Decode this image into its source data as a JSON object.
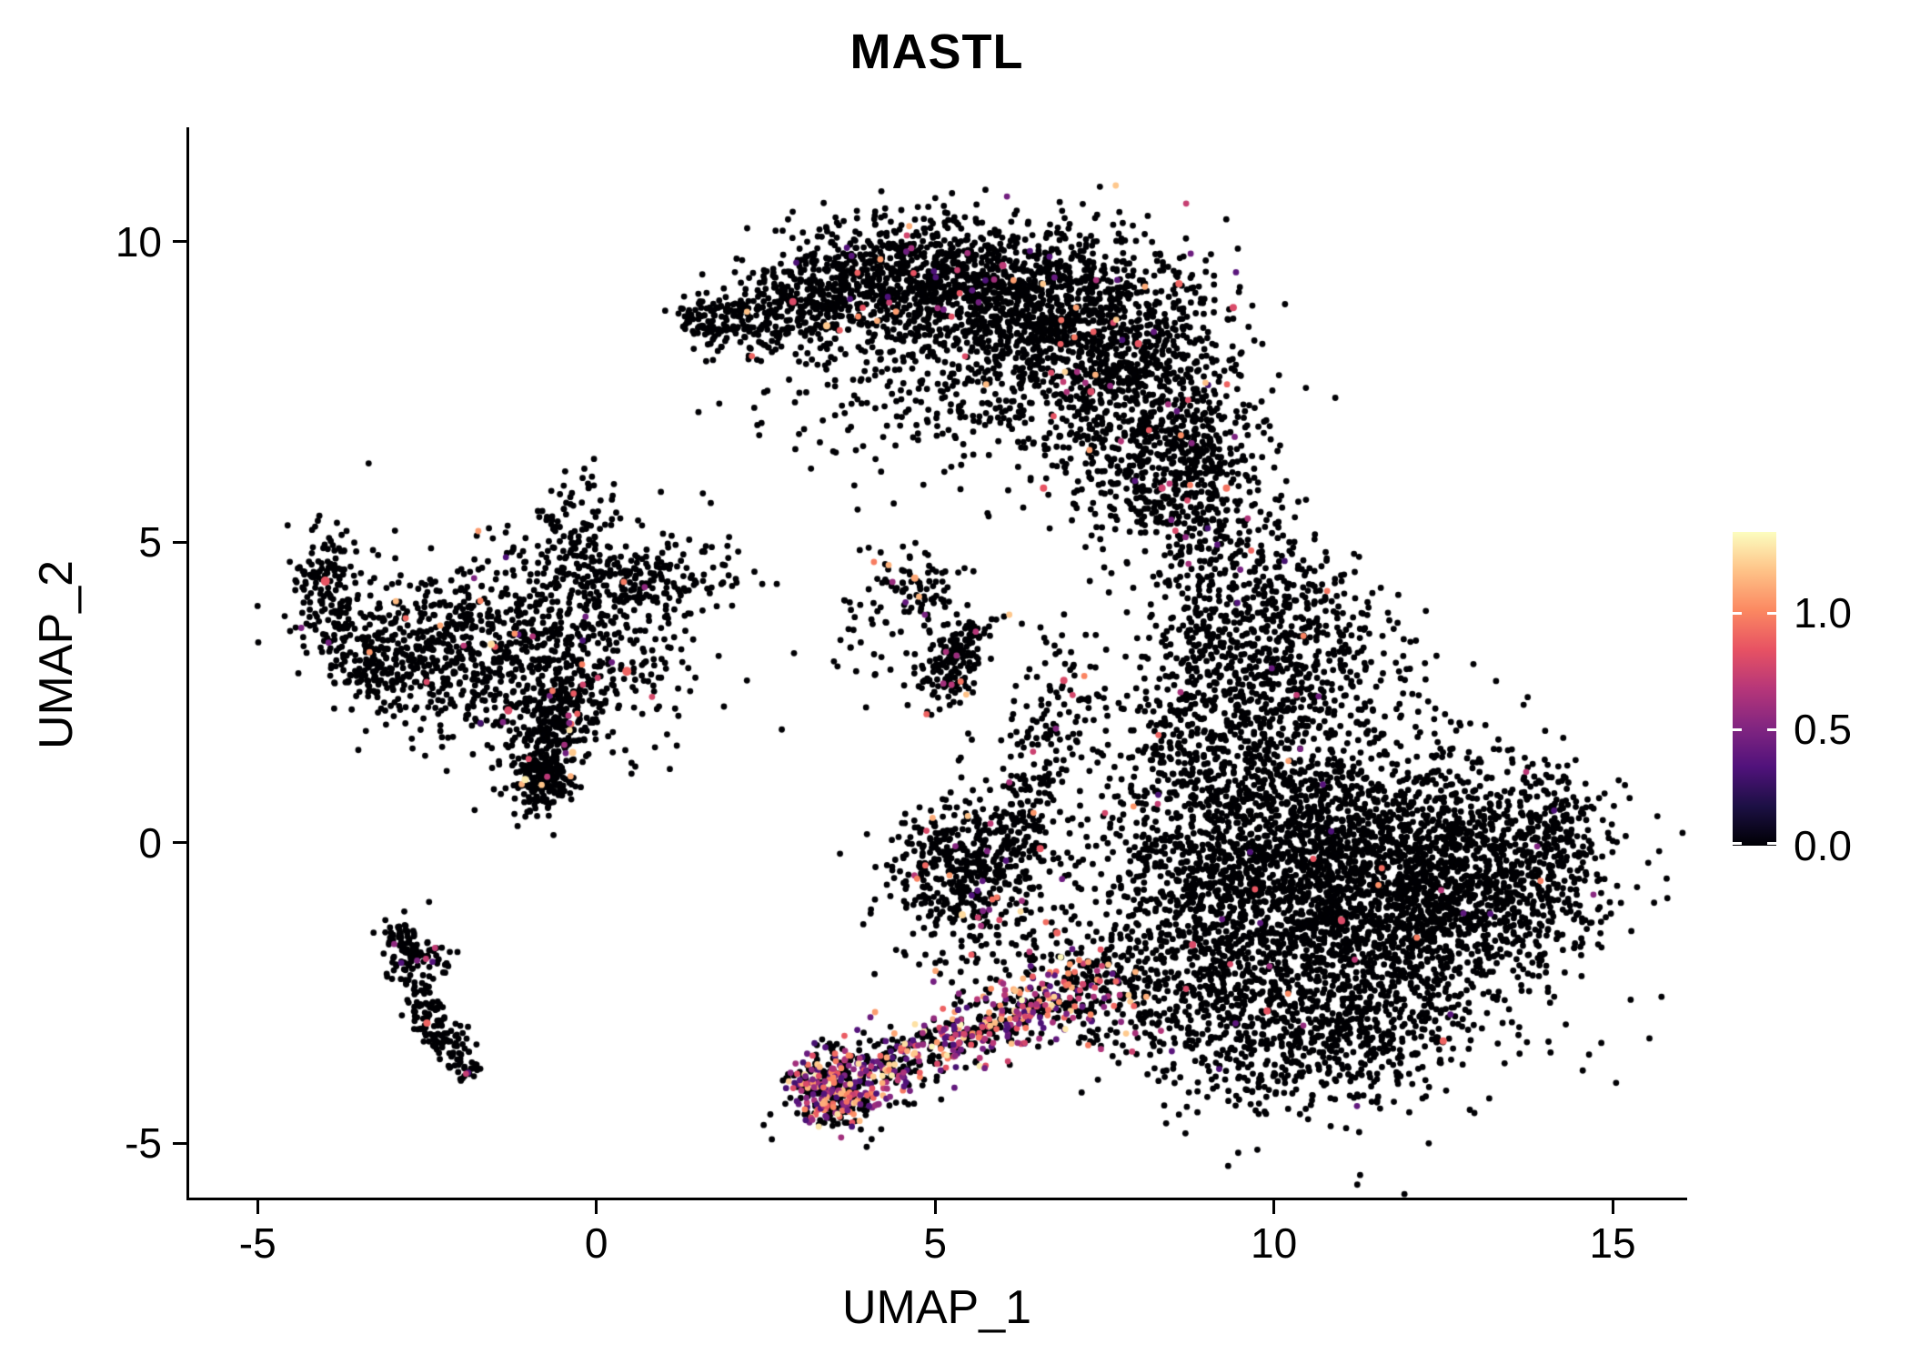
{
  "chart_data": {
    "type": "scatter",
    "title": "MASTL",
    "xlabel": "UMAP_1",
    "ylabel": "UMAP_2",
    "xlim": [
      -6.05,
      16.1
    ],
    "ylim": [
      -5.95,
      11.9
    ],
    "grid": false,
    "legend_position": "right",
    "x_ticks": [
      {
        "v": -5,
        "label": "-5"
      },
      {
        "v": 0,
        "label": "0"
      },
      {
        "v": 5,
        "label": "5"
      },
      {
        "v": 10,
        "label": "10"
      },
      {
        "v": 15,
        "label": "15"
      }
    ],
    "y_ticks": [
      {
        "v": -5,
        "label": "-5"
      },
      {
        "v": 0,
        "label": "0"
      },
      {
        "v": 5,
        "label": "5"
      },
      {
        "v": 10,
        "label": "10"
      }
    ],
    "point_radius_px": 3.4,
    "seed": 42,
    "colorbar": {
      "ticks": [
        {
          "v": 0,
          "label": "0.0"
        },
        {
          "v": 0.5,
          "label": "0.5"
        },
        {
          "v": 1,
          "label": "1.0"
        }
      ],
      "vmin": 0,
      "vmax": 1.35,
      "colormap": "magma",
      "stops": [
        [
          0,
          "#000004"
        ],
        [
          0.125,
          "#1C1044"
        ],
        [
          0.25,
          "#50127B"
        ],
        [
          0.375,
          "#812581"
        ],
        [
          0.5,
          "#B63679"
        ],
        [
          0.625,
          "#E75263"
        ],
        [
          0.75,
          "#FB8861"
        ],
        [
          0.875,
          "#FEC287"
        ],
        [
          1,
          "#FCFDBF"
        ]
      ]
    },
    "clusters": [
      {
        "type": "gauss",
        "cx": 2.0,
        "cy": 8.65,
        "sx": 0.35,
        "sy": 0.28,
        "n": 90,
        "ef": 0.02,
        "em": 1.0
      },
      {
        "type": "gauss",
        "cx": 1.55,
        "cy": 8.75,
        "sx": 0.22,
        "sy": 0.18,
        "n": 45,
        "ef": 0.02,
        "em": 1.0
      },
      {
        "type": "gauss",
        "cx": 3.0,
        "cy": 8.9,
        "sx": 0.55,
        "sy": 0.4,
        "n": 260,
        "ef": 0.03,
        "em": 1.25
      },
      {
        "type": "gauss",
        "cx": 4.3,
        "cy": 9.4,
        "sx": 0.9,
        "sy": 0.5,
        "n": 560,
        "ef": 0.025,
        "em": 1.2
      },
      {
        "type": "gauss",
        "cx": 5.8,
        "cy": 9.2,
        "sx": 1.0,
        "sy": 0.6,
        "n": 700,
        "ef": 0.025,
        "em": 1.2
      },
      {
        "type": "gauss",
        "cx": 7.1,
        "cy": 8.5,
        "sx": 1.0,
        "sy": 0.8,
        "n": 820,
        "ef": 0.03,
        "em": 1.25
      },
      {
        "type": "gauss",
        "cx": 8.15,
        "cy": 7.2,
        "sx": 0.8,
        "sy": 0.95,
        "n": 620,
        "ef": 0.025,
        "em": 1.2
      },
      {
        "type": "gauss",
        "cx": 8.7,
        "cy": 6.0,
        "sx": 0.55,
        "sy": 0.7,
        "n": 310,
        "ef": 0.03,
        "em": 1.2
      },
      {
        "type": "gauss",
        "cx": 5.2,
        "cy": 7.9,
        "sx": 1.3,
        "sy": 0.8,
        "n": 210,
        "ef": 0.02,
        "em": 1.1
      },
      {
        "type": "gauss",
        "cx": 4.4,
        "cy": 7.1,
        "sx": 1.2,
        "sy": 0.7,
        "n": 70,
        "ef": 0.02,
        "em": 1.0
      },
      {
        "type": "gauss",
        "cx": 9.3,
        "cy": 4.3,
        "sx": 0.7,
        "sy": 0.95,
        "n": 310,
        "ef": 0.02,
        "em": 1.1
      },
      {
        "type": "gauss",
        "cx": 9.9,
        "cy": 2.7,
        "sx": 0.85,
        "sy": 0.9,
        "n": 460,
        "ef": 0.012,
        "em": 1.1
      },
      {
        "type": "gauss",
        "cx": 8.75,
        "cy": 1.6,
        "sx": 0.6,
        "sy": 0.85,
        "n": 210,
        "ef": 0.015,
        "em": 1.1
      },
      {
        "type": "gauss",
        "cx": 10.8,
        "cy": 3.6,
        "sx": 0.55,
        "sy": 0.6,
        "n": 120,
        "ef": 0.012,
        "em": 1.0
      },
      {
        "type": "gauss",
        "cx": 11.2,
        "cy": -0.9,
        "sx": 1.5,
        "sy": 1.25,
        "n": 2500,
        "ef": 0.006,
        "em": 1.1
      },
      {
        "type": "gauss",
        "cx": 13.1,
        "cy": -0.6,
        "sx": 0.9,
        "sy": 0.9,
        "n": 700,
        "ef": 0.005,
        "em": 1.0
      },
      {
        "type": "gauss",
        "cx": 10.2,
        "cy": 0.6,
        "sx": 1.0,
        "sy": 0.85,
        "n": 520,
        "ef": 0.006,
        "em": 1.0
      },
      {
        "type": "gauss",
        "cx": 9.2,
        "cy": -1.8,
        "sx": 0.8,
        "sy": 1.1,
        "n": 460,
        "ef": 0.01,
        "em": 1.1
      },
      {
        "type": "gauss",
        "cx": 10.6,
        "cy": -3.3,
        "sx": 1.1,
        "sy": 0.6,
        "n": 460,
        "ef": 0.008,
        "em": 1.1
      },
      {
        "type": "gauss",
        "cx": 14.2,
        "cy": 0.3,
        "sx": 0.35,
        "sy": 0.5,
        "n": 100,
        "ef": 0.008,
        "em": 1.0
      },
      {
        "type": "gauss",
        "cx": -0.6,
        "cy": 3.1,
        "sx": 0.95,
        "sy": 0.85,
        "n": 540,
        "ef": 0.02,
        "em": 1.25
      },
      {
        "type": "gauss",
        "cx": -2.1,
        "cy": 3.4,
        "sx": 0.6,
        "sy": 0.65,
        "n": 270,
        "ef": 0.02,
        "em": 1.2
      },
      {
        "type": "gauss",
        "cx": -0.2,
        "cy": 4.9,
        "sx": 0.35,
        "sy": 0.7,
        "n": 150,
        "ef": 0.015,
        "em": 1.1
      },
      {
        "type": "gauss",
        "cx": 0.9,
        "cy": 4.4,
        "sx": 0.7,
        "sy": 0.4,
        "n": 170,
        "ef": 0.015,
        "em": 1.1
      },
      {
        "type": "line",
        "x1": -0.4,
        "y1": 2.5,
        "x2": -0.8,
        "y2": 0.9,
        "w": 0.22,
        "n": 260,
        "ef": 0.03,
        "em": 1.3
      },
      {
        "type": "gauss",
        "cx": -0.85,
        "cy": 1.0,
        "sx": 0.22,
        "sy": 0.28,
        "n": 120,
        "ef": 0.04,
        "em": 1.3
      },
      {
        "type": "gauss",
        "cx": -2.95,
        "cy": 2.9,
        "sx": 0.35,
        "sy": 0.4,
        "n": 90,
        "ef": 0.02,
        "em": 1.1
      },
      {
        "type": "gauss",
        "cx": -1.2,
        "cy": 3.5,
        "sx": 1.4,
        "sy": 1.0,
        "n": 140,
        "ef": 0.015,
        "em": 1.1
      },
      {
        "type": "gauss",
        "cx": -3.95,
        "cy": 4.2,
        "sx": 0.28,
        "sy": 0.55,
        "n": 150,
        "ef": 0.035,
        "em": 1.2
      },
      {
        "type": "gauss",
        "cx": -3.4,
        "cy": 3.2,
        "sx": 0.35,
        "sy": 0.45,
        "n": 110,
        "ef": 0.02,
        "em": 1.1
      },
      {
        "type": "line",
        "x1": -3.0,
        "y1": -1.4,
        "x2": -2.4,
        "y2": -3.1,
        "w": 0.16,
        "n": 130,
        "ef": 0.03,
        "em": 1.0
      },
      {
        "type": "line",
        "x1": -2.4,
        "y1": -3.1,
        "x2": -1.8,
        "y2": -3.85,
        "w": 0.14,
        "n": 85,
        "ef": 0.03,
        "em": 1.0
      },
      {
        "type": "line",
        "x1": -2.95,
        "y1": -1.55,
        "x2": -2.2,
        "y2": -2.0,
        "w": 0.12,
        "n": 55,
        "ef": 0.02,
        "em": 1.0
      },
      {
        "type": "line",
        "x1": 5.0,
        "y1": 2.4,
        "x2": 5.6,
        "y2": 3.6,
        "w": 0.2,
        "n": 170,
        "ef": 0.05,
        "em": 1.25
      },
      {
        "type": "gauss",
        "cx": 4.7,
        "cy": 4.3,
        "sx": 0.35,
        "sy": 0.3,
        "n": 75,
        "ef": 0.05,
        "em": 1.25
      },
      {
        "type": "gauss",
        "cx": 4.25,
        "cy": 3.65,
        "sx": 0.5,
        "sy": 0.5,
        "n": 45,
        "ef": 0.03,
        "em": 1.1
      },
      {
        "type": "gauss",
        "cx": 5.45,
        "cy": -0.35,
        "sx": 0.55,
        "sy": 0.55,
        "n": 430,
        "ef": 0.04,
        "em": 1.25
      },
      {
        "type": "gauss",
        "cx": 6.3,
        "cy": 0.6,
        "sx": 0.3,
        "sy": 0.8,
        "n": 120,
        "ef": 0.03,
        "em": 1.1
      },
      {
        "type": "gauss",
        "cx": 6.85,
        "cy": 2.0,
        "sx": 0.35,
        "sy": 0.7,
        "n": 110,
        "ef": 0.03,
        "em": 1.1
      },
      {
        "type": "line",
        "x1": 3.3,
        "y1": -4.25,
        "x2": 7.3,
        "y2": -2.3,
        "w": 0.3,
        "n": 660,
        "ef": 0.5,
        "em": 1.35
      },
      {
        "type": "gauss",
        "cx": 3.35,
        "cy": -4.1,
        "sx": 0.28,
        "sy": 0.3,
        "n": 260,
        "ef": 0.45,
        "em": 1.35
      },
      {
        "type": "gauss",
        "cx": 7.65,
        "cy": -2.55,
        "sx": 0.5,
        "sy": 0.5,
        "n": 160,
        "ef": 0.22,
        "em": 1.3
      },
      {
        "type": "gauss",
        "cx": 5.9,
        "cy": -1.7,
        "sx": 0.8,
        "sy": 0.55,
        "n": 130,
        "ef": 0.18,
        "em": 1.3
      },
      {
        "type": "gauss",
        "cx": 8.3,
        "cy": -0.5,
        "sx": 0.6,
        "sy": 1.0,
        "n": 150,
        "ef": 0.02,
        "em": 1.1
      }
    ],
    "highlight_points": [
      {
        "x": 0.45,
        "y": 2.85,
        "v": 0.9,
        "r": 5
      },
      {
        "x": -4.0,
        "y": 4.35,
        "v": 0.85,
        "r": 5
      },
      {
        "x": -1.55,
        "y": 3.3,
        "v": 1.25,
        "r": 4
      },
      {
        "x": -1.3,
        "y": 2.2,
        "v": 0.8,
        "r": 4.5
      },
      {
        "x": -1.05,
        "y": 1.05,
        "v": 1.3,
        "r": 4
      },
      {
        "x": 8.6,
        "y": 9.3,
        "v": 0.9,
        "r": 4
      },
      {
        "x": 9.4,
        "y": 8.9,
        "v": 0.8,
        "r": 4
      },
      {
        "x": 6.0,
        "y": 9.6,
        "v": 0.7,
        "r": 4
      },
      {
        "x": 2.9,
        "y": 9.0,
        "v": 0.8,
        "r": 4
      },
      {
        "x": 3.4,
        "y": 8.6,
        "v": 1.2,
        "r": 4
      },
      {
        "x": 6.6,
        "y": 5.9,
        "v": 0.85,
        "r": 4
      },
      {
        "x": 8.35,
        "y": 5.9,
        "v": 0.75,
        "r": 4
      },
      {
        "x": 6.9,
        "y": 2.7,
        "v": 0.8,
        "r": 4
      },
      {
        "x": 6.55,
        "y": -0.1,
        "v": 0.85,
        "r": 4
      },
      {
        "x": 5.4,
        "y": -1.2,
        "v": 1.25,
        "r": 4
      },
      {
        "x": 6.8,
        "y": -1.5,
        "v": 0.9,
        "r": 4
      },
      {
        "x": 8.8,
        "y": -1.7,
        "v": 0.8,
        "r": 4
      },
      {
        "x": 9.9,
        "y": -2.8,
        "v": 0.85,
        "r": 4
      },
      {
        "x": 11.0,
        "y": -1.3,
        "v": 0.8,
        "r": 4
      },
      {
        "x": 12.5,
        "y": -3.3,
        "v": 0.9,
        "r": 4
      },
      {
        "x": 4.7,
        "y": 4.4,
        "v": 1.1,
        "r": 4
      },
      {
        "x": -0.35,
        "y": 1.5,
        "v": 1.2,
        "r": 4
      },
      {
        "x": -2.5,
        "y": -3.0,
        "v": 0.9,
        "r": 4
      },
      {
        "x": 9.3,
        "y": 5.9,
        "v": 0.95,
        "r": 4
      },
      {
        "x": 8.0,
        "y": 8.3,
        "v": 0.85,
        "r": 4
      },
      {
        "x": 7.3,
        "y": 7.5,
        "v": 0.8,
        "r": 4
      }
    ]
  }
}
